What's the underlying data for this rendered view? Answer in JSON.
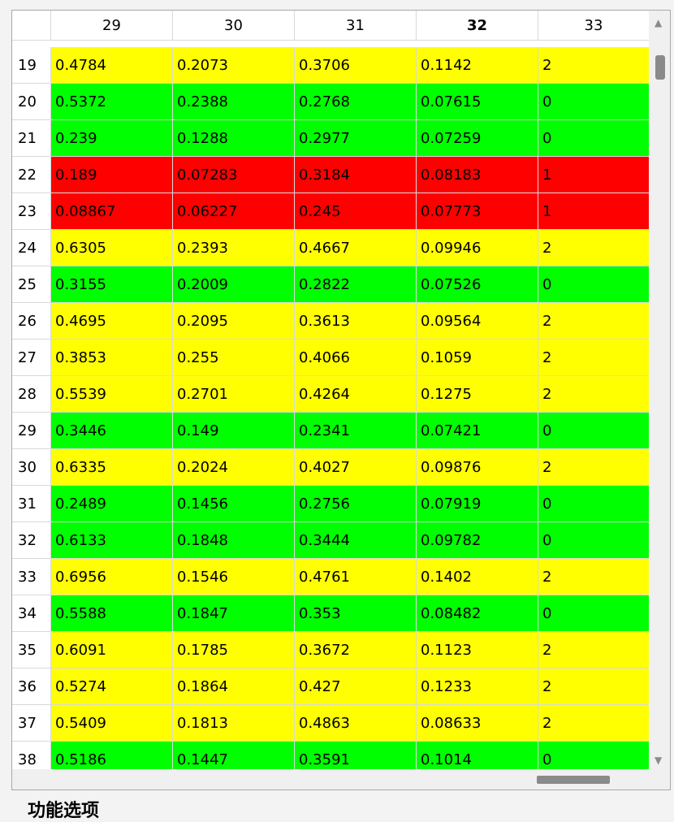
{
  "table": {
    "columns": [
      "29",
      "30",
      "31",
      "32",
      "33"
    ],
    "sorted_column": "32",
    "rows": [
      {
        "index": "19",
        "status": "yellow",
        "cells": [
          "0.4784",
          "0.2073",
          "0.3706",
          "0.1142",
          "2"
        ]
      },
      {
        "index": "20",
        "status": "green",
        "cells": [
          "0.5372",
          "0.2388",
          "0.2768",
          "0.07615",
          "0"
        ]
      },
      {
        "index": "21",
        "status": "green",
        "cells": [
          "0.239",
          "0.1288",
          "0.2977",
          "0.07259",
          "0"
        ]
      },
      {
        "index": "22",
        "status": "red",
        "cells": [
          "0.189",
          "0.07283",
          "0.3184",
          "0.08183",
          "1"
        ]
      },
      {
        "index": "23",
        "status": "red",
        "cells": [
          "0.08867",
          "0.06227",
          "0.245",
          "0.07773",
          "1"
        ]
      },
      {
        "index": "24",
        "status": "yellow",
        "cells": [
          "0.6305",
          "0.2393",
          "0.4667",
          "0.09946",
          "2"
        ]
      },
      {
        "index": "25",
        "status": "green",
        "cells": [
          "0.3155",
          "0.2009",
          "0.2822",
          "0.07526",
          "0"
        ]
      },
      {
        "index": "26",
        "status": "yellow",
        "cells": [
          "0.4695",
          "0.2095",
          "0.3613",
          "0.09564",
          "2"
        ]
      },
      {
        "index": "27",
        "status": "yellow",
        "cells": [
          "0.3853",
          "0.255",
          "0.4066",
          "0.1059",
          "2"
        ]
      },
      {
        "index": "28",
        "status": "yellow",
        "cells": [
          "0.5539",
          "0.2701",
          "0.4264",
          "0.1275",
          "2"
        ]
      },
      {
        "index": "29",
        "status": "green",
        "cells": [
          "0.3446",
          "0.149",
          "0.2341",
          "0.07421",
          "0"
        ]
      },
      {
        "index": "30",
        "status": "yellow",
        "cells": [
          "0.6335",
          "0.2024",
          "0.4027",
          "0.09876",
          "2"
        ]
      },
      {
        "index": "31",
        "status": "green",
        "cells": [
          "0.2489",
          "0.1456",
          "0.2756",
          "0.07919",
          "0"
        ]
      },
      {
        "index": "32",
        "status": "green",
        "cells": [
          "0.6133",
          "0.1848",
          "0.3444",
          "0.09782",
          "0"
        ]
      },
      {
        "index": "33",
        "status": "yellow",
        "cells": [
          "0.6956",
          "0.1546",
          "0.4761",
          "0.1402",
          "2"
        ]
      },
      {
        "index": "34",
        "status": "green",
        "cells": [
          "0.5588",
          "0.1847",
          "0.353",
          "0.08482",
          "0"
        ]
      },
      {
        "index": "35",
        "status": "yellow",
        "cells": [
          "0.6091",
          "0.1785",
          "0.3672",
          "0.1123",
          "2"
        ]
      },
      {
        "index": "36",
        "status": "yellow",
        "cells": [
          "0.5274",
          "0.1864",
          "0.427",
          "0.1233",
          "2"
        ]
      },
      {
        "index": "37",
        "status": "yellow",
        "cells": [
          "0.5409",
          "0.1813",
          "0.4863",
          "0.08633",
          "2"
        ]
      },
      {
        "index": "38",
        "status": "green",
        "cells": [
          "0.5186",
          "0.1447",
          "0.3591",
          "0.1014",
          "0"
        ]
      }
    ]
  },
  "colors": {
    "yellow": "#ffff00",
    "green": "#00ff00",
    "red": "#ff0000"
  },
  "icons": {
    "scroll_up": "up-arrow-icon",
    "scroll_down": "down-arrow-icon"
  },
  "footer": {
    "label": "功能选项"
  }
}
